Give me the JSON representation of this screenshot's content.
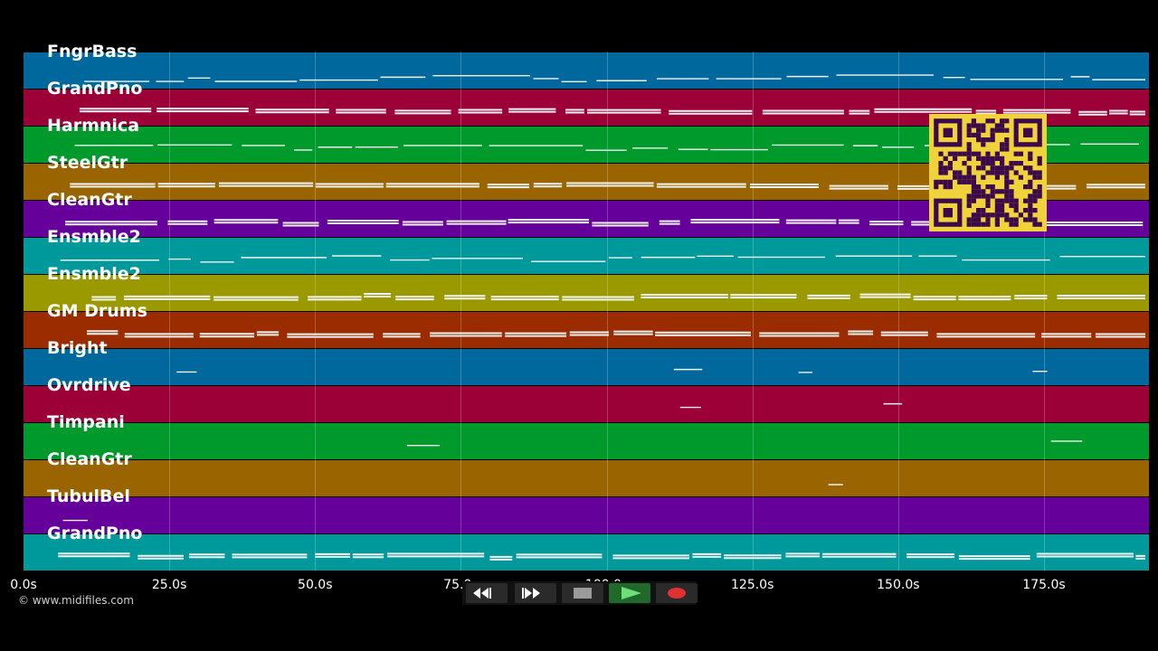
{
  "tracks": [
    {
      "name": "FngrBass",
      "color": "#00689c"
    },
    {
      "name": "GrandPno",
      "color": "#9b0036"
    },
    {
      "name": "Harmnica",
      "color": "#00992c"
    },
    {
      "name": "SteelGtr",
      "color": "#9a6400"
    },
    {
      "name": "CleanGtr",
      "color": "#66009b"
    },
    {
      "name": "Ensmble2",
      "color": "#00999b"
    },
    {
      "name": "Ensmble2",
      "color": "#9a9a00"
    },
    {
      "name": "GM Drums",
      "color": "#9a2c00"
    },
    {
      "name": "Bright",
      "color": "#00689c"
    },
    {
      "name": "Ovrdrive",
      "color": "#9b0036"
    },
    {
      "name": "Timpani",
      "color": "#00992c"
    },
    {
      "name": "CleanGtr",
      "color": "#9a6400"
    },
    {
      "name": "TubulBel",
      "color": "#66009b"
    },
    {
      "name": "GrandPno",
      "color": "#00999b"
    }
  ],
  "time_axis": {
    "max_seconds": 193.0,
    "ticks": [
      {
        "value": 0,
        "label": "0.0s"
      },
      {
        "value": 25,
        "label": "25.0s"
      },
      {
        "value": 50,
        "label": "50.0s"
      },
      {
        "value": 75,
        "label": "75.0s"
      },
      {
        "value": 100,
        "label": "100.0s"
      },
      {
        "value": 125,
        "label": "125.0s"
      },
      {
        "value": 150,
        "label": "150.0s"
      },
      {
        "value": 175,
        "label": "175.0s"
      }
    ]
  },
  "copyright": "© www.midifiles.com",
  "transport": {
    "buttons": [
      {
        "name": "rewind-button",
        "icon": "rewind-icon"
      },
      {
        "name": "fast-forward-button",
        "icon": "fast-forward-icon"
      },
      {
        "name": "stop-button",
        "icon": "stop-icon"
      },
      {
        "name": "play-button",
        "icon": "play-icon"
      },
      {
        "name": "record-button",
        "icon": "record-icon"
      }
    ]
  },
  "qr_code": {
    "icon": "qr-code-icon",
    "color": "#f0d33a"
  }
}
